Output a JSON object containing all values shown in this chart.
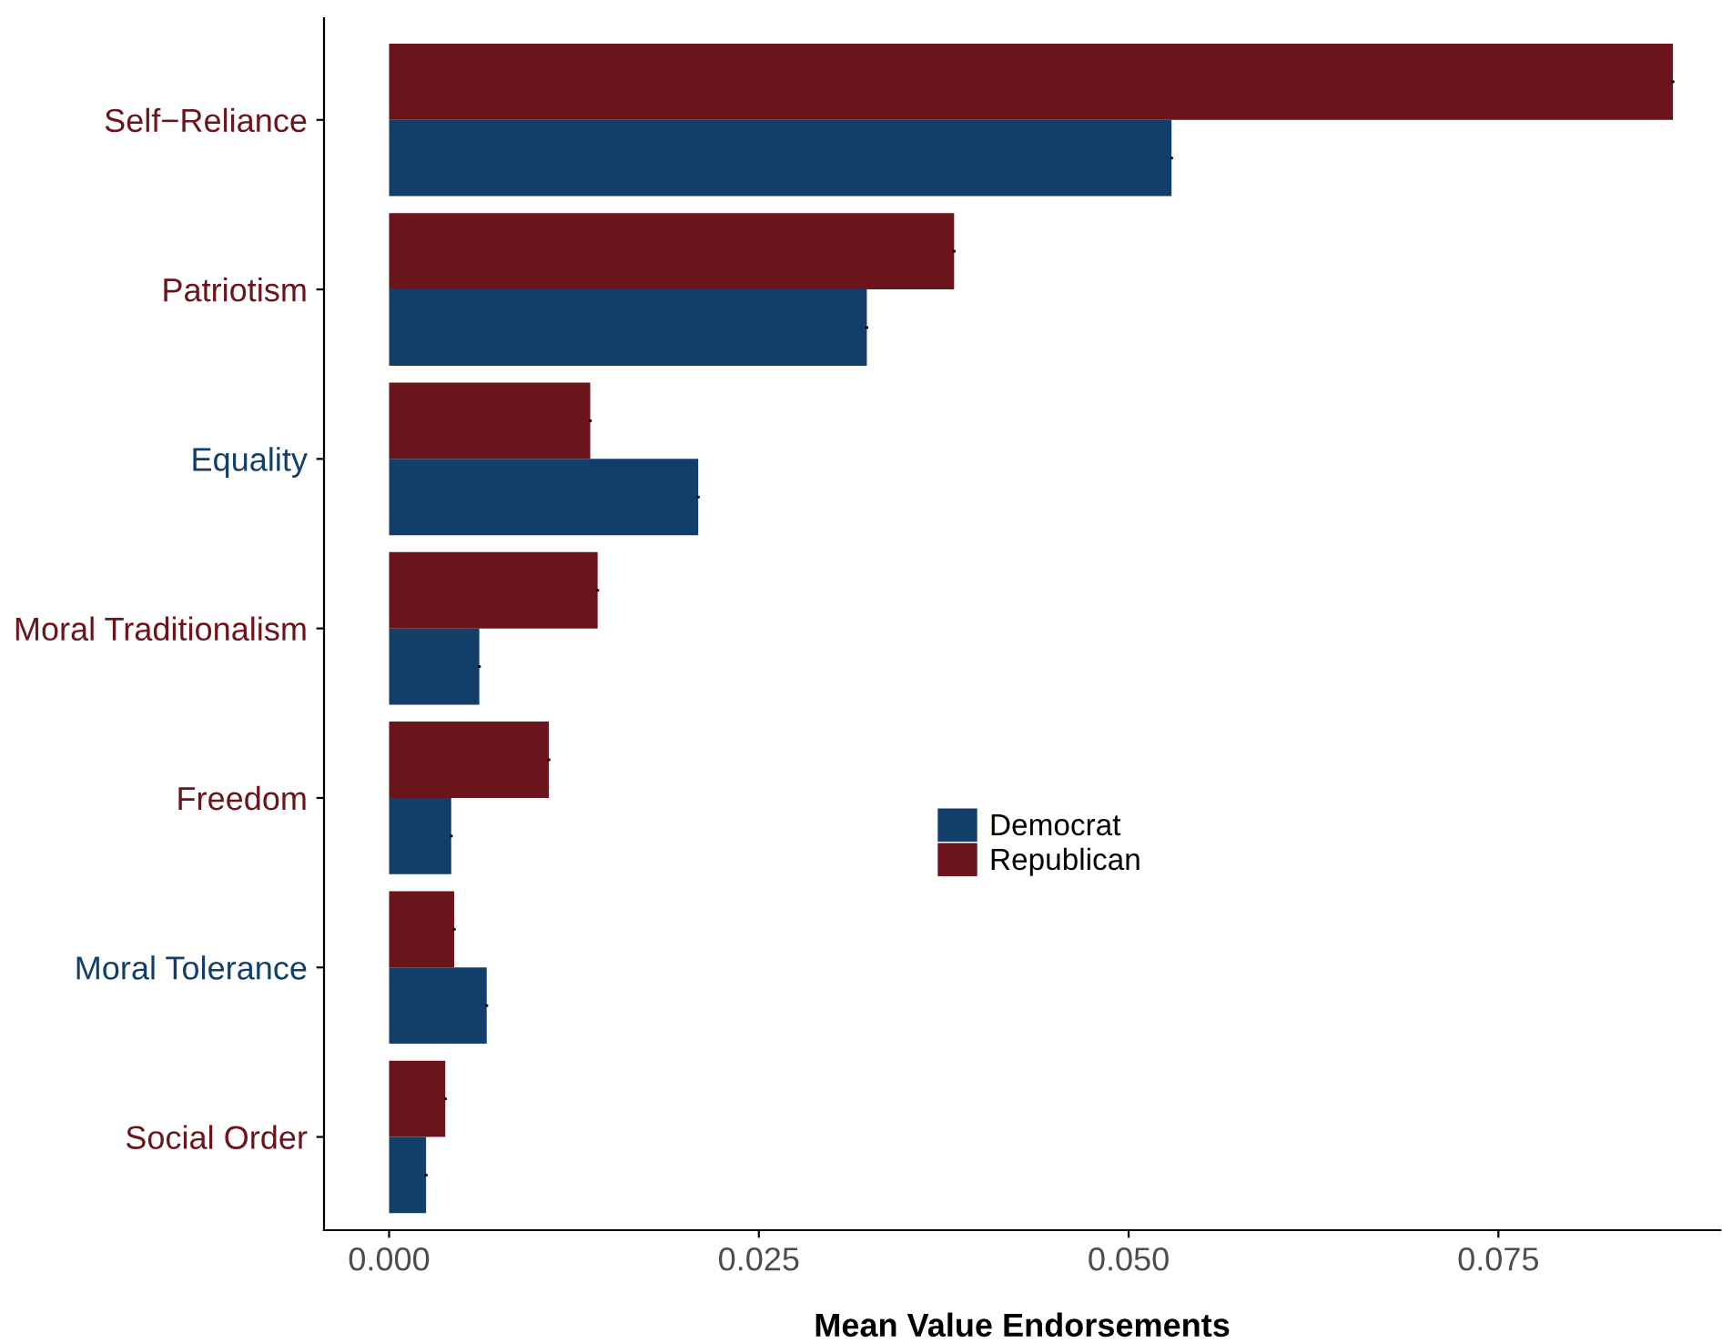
{
  "chart_data": {
    "type": "bar",
    "orientation": "horizontal",
    "xlabel": "Mean Value Endorsements",
    "categories": [
      "Self−Reliance",
      "Patriotism",
      "Equality",
      "Moral Traditionalism",
      "Freedom",
      "Moral Tolerance",
      "Social Order"
    ],
    "series": [
      {
        "name": "Democrat",
        "color": "#123f6a",
        "values": [
          0.0529,
          0.0323,
          0.0209,
          0.0061,
          0.0042,
          0.0066,
          0.0025
        ],
        "errors": [
          0.0001,
          0.0001,
          0.0001,
          0.0001,
          0.0001,
          0.0001,
          0.0001
        ]
      },
      {
        "name": "Republican",
        "color": "#6b141b",
        "values": [
          0.0868,
          0.0382,
          0.0136,
          0.0141,
          0.0108,
          0.0044,
          0.0038
        ],
        "errors": [
          0.0001,
          0.0001,
          0.0001,
          0.0001,
          0.0001,
          0.0001,
          0.0001
        ]
      }
    ],
    "xlim": [
      -0.0044,
      0.09
    ],
    "xticks": [
      {
        "value": 0,
        "label": "0.000"
      },
      0.025,
      {
        "value": 0.05,
        "label": "0.050"
      },
      0.075
    ],
    "grid": false,
    "legend": "right"
  }
}
